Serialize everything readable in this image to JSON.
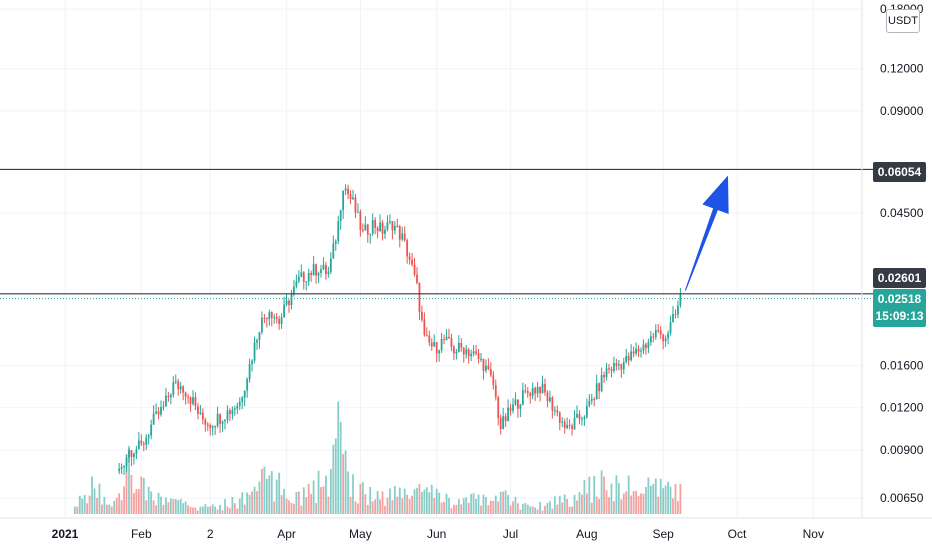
{
  "chart_data": {
    "type": "candlestick",
    "y_scale": "log",
    "y_unit": "USDT",
    "ylim": [
      0.0058,
      0.18
    ],
    "y_ticks": [
      "0.18000",
      "0.12000",
      "0.09000",
      "0.04500",
      "0.01600",
      "0.01200",
      "0.00900",
      "0.00650"
    ],
    "x_ticks": [
      "2021",
      "Feb",
      "2",
      "Apr",
      "May",
      "Jun",
      "Jul",
      "Aug",
      "Sep",
      "Oct",
      "Nov"
    ],
    "grid": true,
    "horizontal_levels": [
      {
        "value": 0.06054,
        "label": "0.06054"
      },
      {
        "value": 0.02601,
        "label": "0.02601"
      }
    ],
    "last_price": {
      "value": 0.02518,
      "label": "0.02518",
      "countdown": "15:09:13"
    },
    "annotation": "blue upward arrow pointing toward 0.06054",
    "close_series": [
      {
        "d": "2021-01-23",
        "c": 0.0078
      },
      {
        "d": "2021-01-27",
        "c": 0.009
      },
      {
        "d": "2021-02-01",
        "c": 0.0092
      },
      {
        "d": "2021-02-06",
        "c": 0.011
      },
      {
        "d": "2021-02-10",
        "c": 0.012
      },
      {
        "d": "2021-02-14",
        "c": 0.014
      },
      {
        "d": "2021-02-18",
        "c": 0.0138
      },
      {
        "d": "2021-02-22",
        "c": 0.0125
      },
      {
        "d": "2021-02-25",
        "c": 0.0112
      },
      {
        "d": "2021-03-01",
        "c": 0.0108
      },
      {
        "d": "2021-03-05",
        "c": 0.0113
      },
      {
        "d": "2021-03-09",
        "c": 0.0118
      },
      {
        "d": "2021-03-13",
        "c": 0.0125
      },
      {
        "d": "2021-03-17",
        "c": 0.016
      },
      {
        "d": "2021-03-21",
        "c": 0.021
      },
      {
        "d": "2021-03-25",
        "c": 0.0235
      },
      {
        "d": "2021-03-29",
        "c": 0.0215
      },
      {
        "d": "2021-04-02",
        "c": 0.025
      },
      {
        "d": "2021-04-06",
        "c": 0.0285
      },
      {
        "d": "2021-04-10",
        "c": 0.03
      },
      {
        "d": "2021-04-14",
        "c": 0.031
      },
      {
        "d": "2021-04-18",
        "c": 0.03
      },
      {
        "d": "2021-04-20",
        "c": 0.035
      },
      {
        "d": "2021-04-22",
        "c": 0.042
      },
      {
        "d": "2021-04-24",
        "c": 0.055
      },
      {
        "d": "2021-04-28",
        "c": 0.048
      },
      {
        "d": "2021-05-02",
        "c": 0.039
      },
      {
        "d": "2021-05-06",
        "c": 0.042
      },
      {
        "d": "2021-05-10",
        "c": 0.04
      },
      {
        "d": "2021-05-14",
        "c": 0.042
      },
      {
        "d": "2021-05-18",
        "c": 0.038
      },
      {
        "d": "2021-05-21",
        "c": 0.033
      },
      {
        "d": "2021-05-24",
        "c": 0.027
      },
      {
        "d": "2021-05-27",
        "c": 0.019
      },
      {
        "d": "2021-05-31",
        "c": 0.018
      },
      {
        "d": "2021-06-04",
        "c": 0.019
      },
      {
        "d": "2021-06-08",
        "c": 0.0178
      },
      {
        "d": "2021-06-12",
        "c": 0.018
      },
      {
        "d": "2021-06-16",
        "c": 0.0172
      },
      {
        "d": "2021-06-20",
        "c": 0.0162
      },
      {
        "d": "2021-06-24",
        "c": 0.014
      },
      {
        "d": "2021-06-27",
        "c": 0.0105
      },
      {
        "d": "2021-07-01",
        "c": 0.0118
      },
      {
        "d": "2021-07-05",
        "c": 0.0128
      },
      {
        "d": "2021-07-09",
        "c": 0.0135
      },
      {
        "d": "2021-07-13",
        "c": 0.0138
      },
      {
        "d": "2021-07-17",
        "c": 0.0125
      },
      {
        "d": "2021-07-21",
        "c": 0.0112
      },
      {
        "d": "2021-07-24",
        "c": 0.0103
      },
      {
        "d": "2021-07-27",
        "c": 0.0108
      },
      {
        "d": "2021-08-01",
        "c": 0.0118
      },
      {
        "d": "2021-08-05",
        "c": 0.0135
      },
      {
        "d": "2021-08-09",
        "c": 0.0155
      },
      {
        "d": "2021-08-13",
        "c": 0.016
      },
      {
        "d": "2021-08-17",
        "c": 0.0165
      },
      {
        "d": "2021-08-21",
        "c": 0.0175
      },
      {
        "d": "2021-08-25",
        "c": 0.0185
      },
      {
        "d": "2021-08-29",
        "c": 0.02
      },
      {
        "d": "2021-09-02",
        "c": 0.0195
      },
      {
        "d": "2021-09-06",
        "c": 0.0225
      },
      {
        "d": "2021-09-08",
        "c": 0.0252
      }
    ],
    "volume_series": [
      {
        "d": "2021-01-05",
        "v": 1
      },
      {
        "d": "2021-01-12",
        "v": 5
      },
      {
        "d": "2021-01-20",
        "v": 1
      },
      {
        "d": "2021-01-26",
        "v": 8
      },
      {
        "d": "2021-02-01",
        "v": 5
      },
      {
        "d": "2021-02-05",
        "v": 3
      },
      {
        "d": "2021-02-14",
        "v": 2
      },
      {
        "d": "2021-03-01",
        "v": 1
      },
      {
        "d": "2021-03-18",
        "v": 3
      },
      {
        "d": "2021-03-22",
        "v": 6
      },
      {
        "d": "2021-04-06",
        "v": 3
      },
      {
        "d": "2021-04-10",
        "v": 4
      },
      {
        "d": "2021-04-19",
        "v": 6
      },
      {
        "d": "2021-04-22",
        "v": 15
      },
      {
        "d": "2021-04-24",
        "v": 8
      },
      {
        "d": "2021-05-01",
        "v": 4
      },
      {
        "d": "2021-05-10",
        "v": 3
      },
      {
        "d": "2021-05-25",
        "v": 4
      },
      {
        "d": "2021-06-10",
        "v": 2
      },
      {
        "d": "2021-06-28",
        "v": 3
      },
      {
        "d": "2021-07-10",
        "v": 1
      },
      {
        "d": "2021-08-08",
        "v": 5
      },
      {
        "d": "2021-08-28",
        "v": 4
      },
      {
        "d": "2021-09-06",
        "v": 4
      },
      {
        "d": "2021-09-08",
        "v": 4
      }
    ],
    "colors": {
      "up": "#26a69a",
      "down": "#ef5350",
      "level_line": "#363a45",
      "arrow": "#1e53e5",
      "grid": "#f0f3fa"
    }
  },
  "axis_unit": "USDT"
}
